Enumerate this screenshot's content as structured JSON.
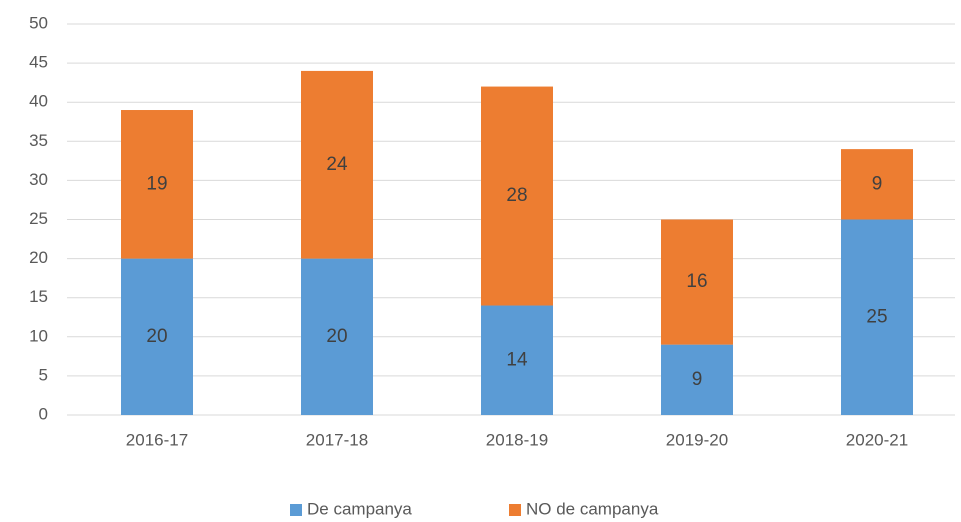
{
  "chart_data": {
    "type": "stacked_bar",
    "categories": [
      "2016-17",
      "2017-18",
      "2018-19",
      "2019-20",
      "2020-21"
    ],
    "series": [
      {
        "name": "De campanya",
        "color": "#5b9bd5",
        "values": [
          20,
          20,
          14,
          9,
          25
        ]
      },
      {
        "name": "NO de campanya",
        "color": "#ed7d31",
        "values": [
          19,
          24,
          28,
          16,
          9
        ]
      }
    ],
    "ylim": [
      0,
      50
    ],
    "yticks": [
      0,
      5,
      10,
      15,
      20,
      25,
      30,
      35,
      40,
      45,
      50
    ],
    "grid": true,
    "legend": "bottom"
  }
}
